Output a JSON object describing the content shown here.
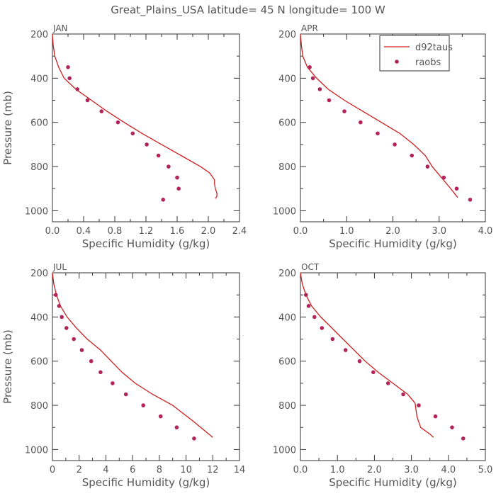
{
  "figure": {
    "title": "Great_Plains_USA   latitude= 45 N longitude= 100 W"
  },
  "legend": {
    "line_label": "d92taus",
    "point_label": "raobs"
  },
  "colors": {
    "model_line": "#cc1f1f",
    "obs_points": "#b3245a",
    "axes": "#333333",
    "text": "#555555"
  },
  "chart_data": [
    {
      "type": "scatter",
      "panel_label": "JAN",
      "xlabel": "Specific Humidity (g/kg)",
      "ylabel": "Pressure (mb)",
      "xlim": [
        0,
        2.4
      ],
      "ylim": [
        1050,
        200
      ],
      "xticks": [
        "0.0",
        "0.4",
        "0.8",
        "1.2",
        "1.6",
        "2.0",
        "2.4"
      ],
      "xtick_values": [
        0,
        0.4,
        0.8,
        1.2,
        1.6,
        2.0,
        2.4
      ],
      "yticks": [
        "200",
        "400",
        "600",
        "800",
        "1000"
      ],
      "ytick_values": [
        200,
        400,
        600,
        800,
        1000
      ],
      "legend": "top-right",
      "series": [
        {
          "name": "d92taus",
          "kind": "line",
          "x": [
            0.0,
            0.01,
            0.03,
            0.08,
            0.15,
            0.3,
            0.5,
            0.7,
            0.92,
            1.15,
            1.4,
            1.65,
            1.9,
            2.02,
            2.08,
            2.08,
            2.09,
            2.11,
            2.11,
            2.09
          ],
          "y": [
            200,
            250,
            300,
            350,
            400,
            450,
            500,
            550,
            600,
            650,
            700,
            750,
            800,
            830,
            860,
            880,
            900,
            920,
            935,
            945
          ]
        },
        {
          "name": "raobs",
          "kind": "points",
          "x": [
            0.2,
            0.22,
            0.32,
            0.45,
            0.63,
            0.84,
            1.03,
            1.21,
            1.36,
            1.49,
            1.6,
            1.62,
            1.42
          ],
          "y": [
            350,
            400,
            450,
            500,
            550,
            600,
            650,
            700,
            750,
            800,
            850,
            900,
            950
          ]
        }
      ]
    },
    {
      "type": "scatter",
      "panel_label": "APR",
      "xlabel": "Specific Humidity (g/kg)",
      "ylabel": "",
      "xlim": [
        0,
        4.0
      ],
      "ylim": [
        1050,
        200
      ],
      "xticks": [
        "0.0",
        "1.0",
        "2.0",
        "3.0",
        "4.0"
      ],
      "xtick_values": [
        0,
        1,
        2,
        3,
        4
      ],
      "yticks": [
        "200",
        "400",
        "600",
        "800",
        "1000"
      ],
      "ytick_values": [
        200,
        400,
        600,
        800,
        1000
      ],
      "series": [
        {
          "name": "d92taus",
          "kind": "line",
          "x": [
            0.0,
            0.02,
            0.05,
            0.15,
            0.35,
            0.6,
            0.95,
            1.35,
            1.75,
            2.15,
            2.45,
            2.7,
            2.85,
            3.05,
            3.25,
            3.4
          ],
          "y": [
            200,
            250,
            300,
            350,
            400,
            450,
            500,
            550,
            600,
            650,
            700,
            750,
            800,
            850,
            900,
            940
          ]
        },
        {
          "name": "raobs",
          "kind": "points",
          "x": [
            0.2,
            0.27,
            0.42,
            0.62,
            0.95,
            1.3,
            1.67,
            2.04,
            2.41,
            2.75,
            3.1,
            3.38,
            3.67
          ],
          "y": [
            350,
            400,
            450,
            500,
            550,
            600,
            650,
            700,
            750,
            800,
            850,
            900,
            950
          ]
        }
      ]
    },
    {
      "type": "scatter",
      "panel_label": "JUL",
      "xlabel": "Specific Humidity (g/kg)",
      "ylabel": "Pressure (mb)",
      "xlim": [
        0,
        14
      ],
      "ylim": [
        1050,
        200
      ],
      "xticks": [
        "0",
        "2",
        "4",
        "6",
        "8",
        "10",
        "12",
        "14"
      ],
      "xtick_values": [
        0,
        2,
        4,
        6,
        8,
        10,
        12,
        14
      ],
      "yticks": [
        "200",
        "400",
        "600",
        "800",
        "1000"
      ],
      "ytick_values": [
        200,
        400,
        600,
        800,
        1000
      ],
      "series": [
        {
          "name": "d92taus",
          "kind": "line",
          "x": [
            0.0,
            0.1,
            0.3,
            0.6,
            1.1,
            1.8,
            2.6,
            3.6,
            4.4,
            5.2,
            6.2,
            7.5,
            9.0,
            10.5,
            12.0
          ],
          "y": [
            200,
            250,
            300,
            350,
            400,
            450,
            500,
            550,
            600,
            650,
            700,
            750,
            800,
            870,
            945
          ]
        },
        {
          "name": "raobs",
          "kind": "points",
          "x": [
            0.25,
            0.5,
            0.7,
            1.05,
            1.6,
            2.2,
            2.9,
            3.6,
            4.5,
            5.5,
            6.8,
            8.1,
            9.3,
            10.6
          ],
          "y": [
            300,
            350,
            400,
            450,
            500,
            550,
            600,
            650,
            700,
            750,
            800,
            850,
            900,
            950
          ]
        }
      ]
    },
    {
      "type": "scatter",
      "panel_label": "OCT",
      "xlabel": "Specific Humidity (g/kg)",
      "ylabel": "",
      "xlim": [
        0,
        5.0
      ],
      "ylim": [
        1050,
        200
      ],
      "xticks": [
        "0.0",
        "1.0",
        "2.0",
        "3.0",
        "4.0",
        "5.0"
      ],
      "xtick_values": [
        0,
        1,
        2,
        3,
        4,
        5
      ],
      "yticks": [
        "200",
        "400",
        "600",
        "800",
        "1000"
      ],
      "ytick_values": [
        200,
        400,
        600,
        800,
        1000
      ],
      "series": [
        {
          "name": "d92taus",
          "kind": "line",
          "x": [
            0.0,
            0.05,
            0.15,
            0.3,
            0.55,
            0.85,
            1.15,
            1.45,
            1.75,
            2.1,
            2.5,
            2.9,
            3.1,
            3.15,
            3.25,
            3.5,
            3.6
          ],
          "y": [
            200,
            250,
            300,
            350,
            400,
            450,
            500,
            550,
            600,
            650,
            700,
            750,
            790,
            850,
            900,
            930,
            945
          ]
        },
        {
          "name": "raobs",
          "kind": "points",
          "x": [
            0.15,
            0.22,
            0.38,
            0.58,
            0.87,
            1.22,
            1.6,
            1.97,
            2.37,
            2.78,
            3.2,
            3.65,
            4.1,
            4.4
          ],
          "y": [
            300,
            350,
            400,
            450,
            500,
            550,
            600,
            650,
            700,
            750,
            800,
            850,
            900,
            950
          ]
        }
      ]
    }
  ]
}
